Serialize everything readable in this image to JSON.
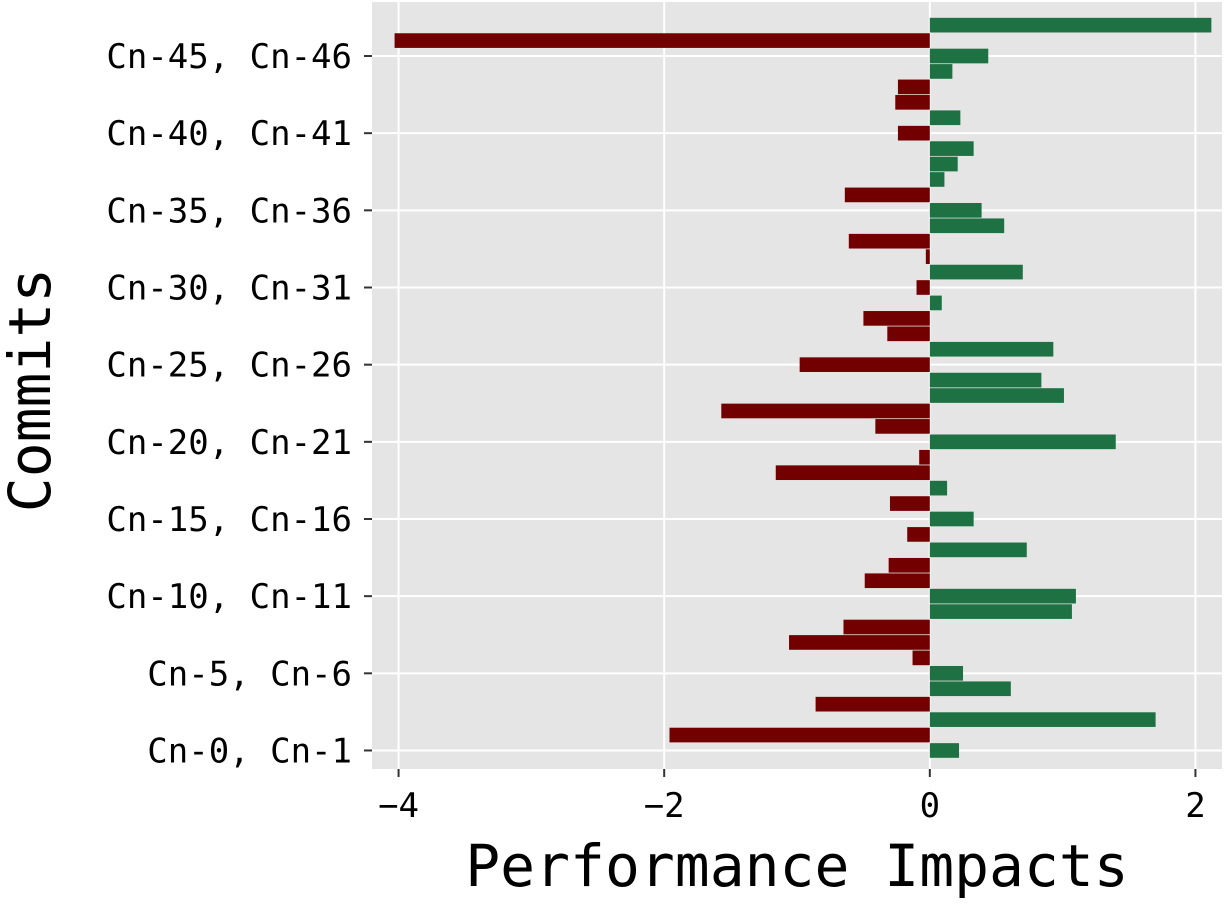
{
  "chart_data": {
    "type": "bar",
    "orientation": "horizontal",
    "xlabel": "Performance Impacts",
    "ylabel": "Commits",
    "xlim": [
      -4.2,
      2.2
    ],
    "ylim": [
      -1.2,
      48.5
    ],
    "xticks": [
      -4,
      -2,
      0,
      2
    ],
    "xtick_labels": [
      "−4",
      "−2",
      "0",
      "2"
    ],
    "yticks": [
      0,
      5,
      10,
      15,
      20,
      25,
      30,
      35,
      40,
      45
    ],
    "ytick_labels": [
      "Cn-0, Cn-1",
      "Cn-5, Cn-6",
      "Cn-10, Cn-11",
      "Cn-15, Cn-16",
      "Cn-20, Cn-21",
      "Cn-25, Cn-26",
      "Cn-30, Cn-31",
      "Cn-35, Cn-36",
      "Cn-40, Cn-41",
      "Cn-45, Cn-46"
    ],
    "grid": true,
    "colors": {
      "positive": "#1e7142",
      "negative": "#730000",
      "background": "#e5e5e5",
      "grid": "#ffffff"
    },
    "values": [
      0.22,
      -1.96,
      1.7,
      -0.86,
      0.61,
      0.25,
      -0.13,
      -1.06,
      -0.65,
      1.07,
      1.1,
      -0.49,
      -0.31,
      0.73,
      -0.17,
      0.33,
      -0.3,
      0.13,
      -1.16,
      -0.08,
      1.4,
      -0.41,
      -1.57,
      1.01,
      0.84,
      -0.98,
      0.93,
      -0.32,
      -0.5,
      0.09,
      -0.1,
      0.7,
      -0.03,
      -0.61,
      0.56,
      0.39,
      -0.64,
      0.11,
      0.21,
      0.33,
      -0.24,
      0.23,
      -0.26,
      -0.24,
      0.17,
      0.44,
      -4.03,
      2.12
    ]
  }
}
